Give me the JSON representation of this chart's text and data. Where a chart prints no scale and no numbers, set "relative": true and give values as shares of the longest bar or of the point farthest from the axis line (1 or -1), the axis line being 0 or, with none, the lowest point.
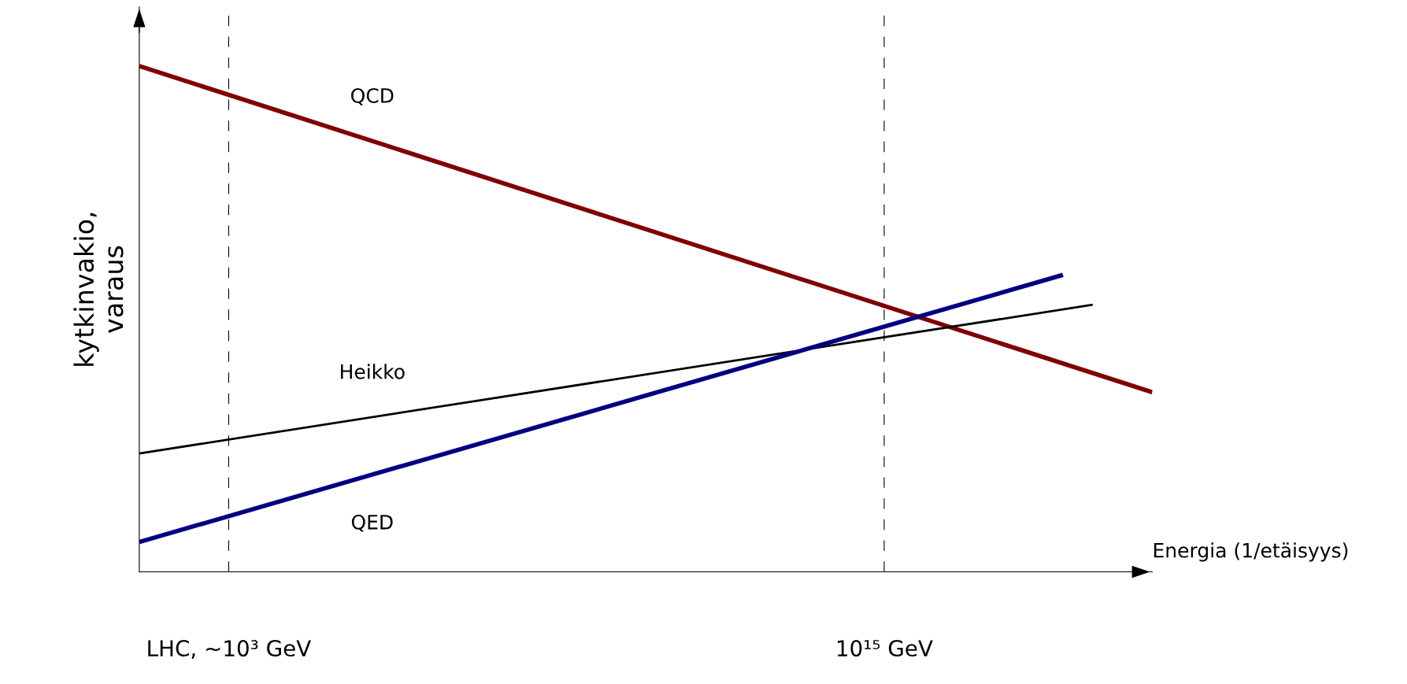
{
  "chart_data": {
    "type": "line",
    "relative": true,
    "xlabel": "Energia (1/etäisyys)",
    "ylabel": "kytkinvakio,\nvaraus",
    "categories": [
      null,
      null,
      null,
      "LHC, ~10³ GeV",
      null,
      null,
      null,
      null,
      null,
      null,
      null,
      null,
      null,
      null,
      null,
      null,
      null,
      null,
      null,
      null,
      null,
      null,
      null,
      null,
      null,
      "10¹⁵ GeV",
      null,
      null,
      null,
      null,
      null,
      null,
      null,
      null,
      null
    ],
    "series": [
      {
        "name": "QCD",
        "color": "#800000",
        "values": [
          1,
          null,
          null,
          null,
          null,
          null,
          null,
          null,
          null,
          null,
          null,
          null,
          null,
          null,
          null,
          null,
          null,
          null,
          null,
          null,
          null,
          null,
          null,
          null,
          null,
          null,
          null,
          null,
          null,
          null,
          null,
          null,
          null,
          null,
          0.355
        ]
      },
      {
        "name": "Heikko",
        "color": "#000000",
        "values": [
          0.234,
          null,
          null,
          null,
          null,
          null,
          null,
          null,
          null,
          null,
          null,
          null,
          null,
          null,
          null,
          null,
          null,
          null,
          null,
          null,
          null,
          null,
          null,
          null,
          null,
          null,
          null,
          null,
          null,
          null,
          null,
          null,
          0.528,
          null,
          null
        ]
      },
      {
        "name": "QED",
        "color": "#000080",
        "values": [
          0.059,
          null,
          null,
          null,
          null,
          null,
          null,
          null,
          null,
          null,
          null,
          null,
          null,
          null,
          null,
          null,
          null,
          null,
          null,
          null,
          null,
          null,
          null,
          null,
          null,
          null,
          null,
          null,
          null,
          null,
          null,
          0.587,
          null,
          null,
          null
        ]
      }
    ],
    "ref_lines": [
      {
        "axis": "x",
        "value": "LHC, ~10³ GeV",
        "color": "#000000",
        "line_style": "dashed"
      },
      {
        "axis": "x",
        "value": "10¹⁵ GeV",
        "color": "#000000",
        "line_style": "dashed"
      }
    ]
  }
}
